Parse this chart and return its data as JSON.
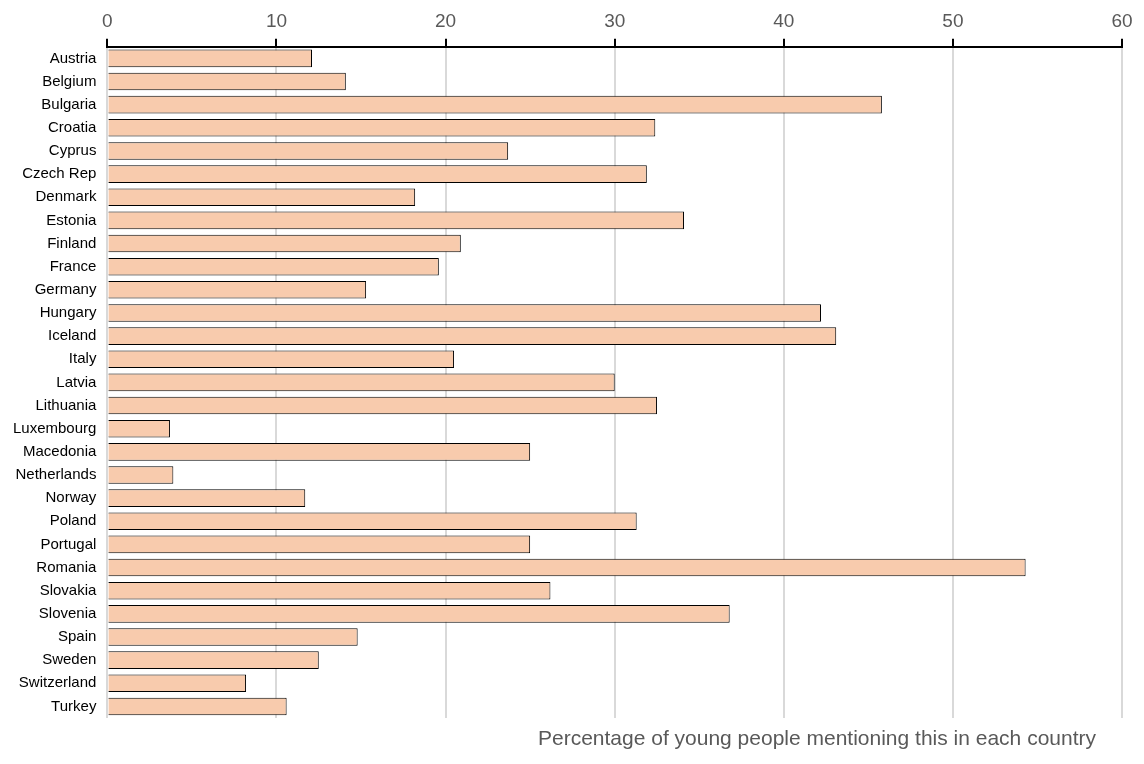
{
  "chart_data": {
    "type": "bar",
    "orientation": "horizontal",
    "xlabel": "Percentage of young people mentioning this in each country",
    "categories": [
      "Austria",
      "Belgium",
      "Bulgaria",
      "Croatia",
      "Cyprus",
      "Czech Rep",
      "Denmark",
      "Estonia",
      "Finland",
      "France",
      "Germany",
      "Hungary",
      "Iceland",
      "Italy",
      "Latvia",
      "Lithuania",
      "Luxembourg",
      "Macedonia",
      "Netherlands",
      "Norway",
      "Poland",
      "Portugal",
      "Romania",
      "Slovakia",
      "Slovenia",
      "Spain",
      "Sweden",
      "Switzerland",
      "Turkey"
    ],
    "values": [
      12.1,
      14.1,
      45.8,
      32.4,
      23.7,
      31.9,
      18.2,
      34.1,
      20.9,
      19.6,
      15.3,
      42.2,
      43.1,
      20.5,
      30.0,
      32.5,
      3.7,
      25.0,
      3.9,
      11.7,
      31.3,
      25.0,
      54.3,
      26.2,
      36.8,
      14.8,
      12.5,
      8.2,
      10.6
    ],
    "color": "#f8cbad",
    "xlim": [
      0,
      60
    ],
    "xticks": [
      0,
      10,
      20,
      30,
      40,
      50,
      60
    ],
    "grid": "x",
    "legend": false
  }
}
